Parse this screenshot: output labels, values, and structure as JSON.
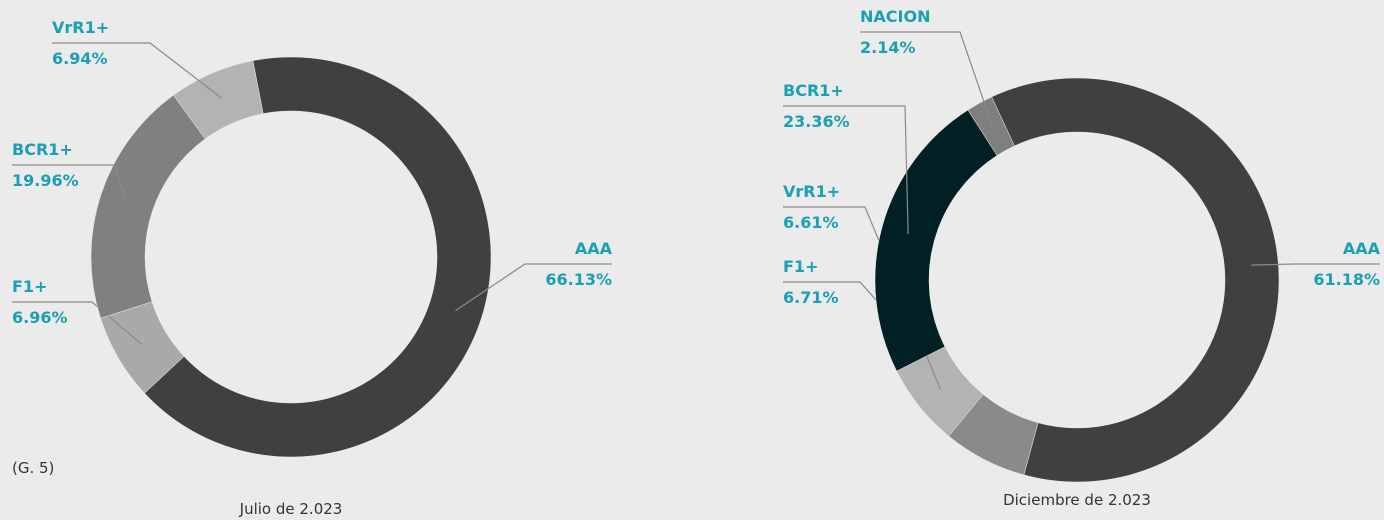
{
  "figure_label": "(G. 5)",
  "chart_data": [
    {
      "type": "donut",
      "caption": "Julio de 2.023",
      "categories": [
        "AAA",
        "F1+",
        "BCR1+",
        "VrR1+"
      ],
      "values": [
        66.13,
        6.96,
        19.96,
        6.94
      ],
      "value_labels": [
        "66.13%",
        "6.96%",
        "19.96%",
        "6.94%"
      ],
      "colors": [
        "#404040",
        "#a9a9a9",
        "#808080",
        "#b3b3b3"
      ]
    },
    {
      "type": "donut",
      "caption": "Diciembre de 2.023",
      "categories": [
        "AAA",
        "F1+",
        "VrR1+",
        "BCR1+",
        "NACION"
      ],
      "values": [
        61.18,
        6.71,
        6.61,
        23.36,
        2.14
      ],
      "value_labels": [
        "61.18%",
        "6.71%",
        "6.61%",
        "23.36%",
        "2.14%"
      ],
      "colors": [
        "#404040",
        "#8a8a8a",
        "#b3b3b3",
        "#012024",
        "#7f7f7f"
      ]
    }
  ]
}
